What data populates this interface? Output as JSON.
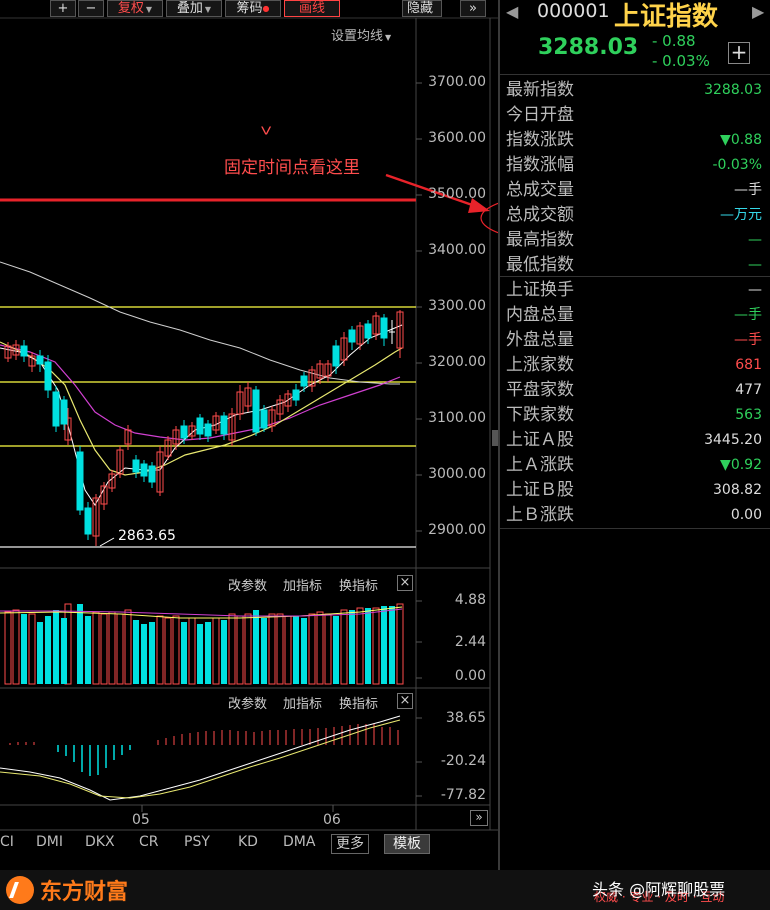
{
  "toolbar": {
    "zoom_in": "+",
    "zoom_out": "−",
    "restore": "复权",
    "overlay": "叠加",
    "chips": "筹码",
    "draw": "画线",
    "hide": "隐藏",
    "expand": "»"
  },
  "chart": {
    "ma_setting": "设置均线",
    "y_ticks": [
      "3700.00",
      "3600.00",
      "3500.00",
      "3400.00",
      "3300.00",
      "3200.00",
      "3100.00",
      "3000.00",
      "2900.00"
    ],
    "low_label": "2863.65",
    "annotation_text": "固定时间点看这里",
    "annotation_mark": "V",
    "x_labels": [
      "05",
      "06"
    ]
  },
  "volume_panel": {
    "edit_params": "改参数",
    "add_indicator": "加指标",
    "switch_indicator": "换指标",
    "close": "×",
    "y_ticks": [
      "4.88",
      "2.44",
      "0.00"
    ]
  },
  "macd_panel": {
    "edit_params": "改参数",
    "add_indicator": "加指标",
    "switch_indicator": "换指标",
    "close": "×",
    "y_ticks": [
      "38.65",
      "-20.24",
      "-77.82"
    ]
  },
  "indicator_tabs": [
    "CI",
    "DMI",
    "DKX",
    "CR",
    "PSY",
    "KD",
    "DMA"
  ],
  "more_button": "更多",
  "template_button": "模板",
  "quote": {
    "code": "000001",
    "name": "上证指数",
    "price": "3288.03",
    "change": "- 0.88",
    "change_pct": "- 0.03%",
    "add": "+",
    "rows1": [
      {
        "label": "最新指数",
        "value": "3288.03",
        "color": "g"
      },
      {
        "label": "今日开盘",
        "value": "",
        "color": "w"
      },
      {
        "label": "指数涨跌",
        "value": "▼0.88",
        "color": "g"
      },
      {
        "label": "指数涨幅",
        "value": "-0.03%",
        "color": "g"
      },
      {
        "label": "总成交量",
        "value": "—手",
        "color": "w"
      },
      {
        "label": "总成交额",
        "value": "—万元",
        "color": "c"
      },
      {
        "label": "最高指数",
        "value": "—",
        "color": "g"
      },
      {
        "label": "最低指数",
        "value": "—",
        "color": "g"
      }
    ],
    "rows2": [
      {
        "label": "上证换手",
        "value": "—",
        "color": "w"
      },
      {
        "label": "内盘总量",
        "value": "—手",
        "color": "g"
      },
      {
        "label": "外盘总量",
        "value": "—手",
        "color": "r"
      },
      {
        "label": "上涨家数",
        "value": "681",
        "color": "r"
      },
      {
        "label": "平盘家数",
        "value": "477",
        "color": "w"
      },
      {
        "label": "下跌家数",
        "value": "563",
        "color": "g"
      },
      {
        "label": "上证Ａ股",
        "value": "3445.20",
        "color": "w"
      },
      {
        "label": "上Ａ涨跌",
        "value": "▼0.92",
        "color": "g"
      },
      {
        "label": "上证Ｂ股",
        "value": "308.82",
        "color": "w"
      },
      {
        "label": "上Ｂ涨跌",
        "value": "0.00",
        "color": "w"
      }
    ]
  },
  "footer": {
    "brand": "东方财富",
    "watermark": "头条 @阿辉聊股票",
    "slogan": "权威 · 专业 · 及时 · 互动"
  },
  "colors": {
    "up": "#ff4d4d",
    "down": "#2fd05c",
    "flat_candle": "#00e0e0",
    "accent_red": "#e8232a",
    "brand_orange": "#ff7a1a"
  }
}
